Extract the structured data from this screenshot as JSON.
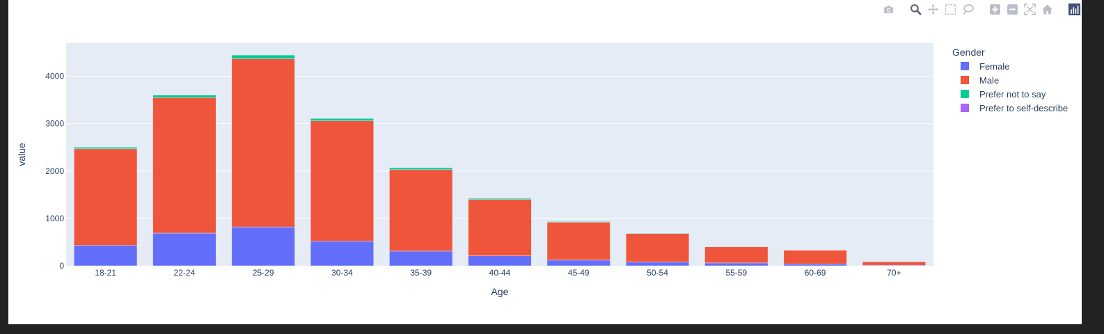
{
  "chart_data": {
    "type": "bar",
    "barmode": "stack",
    "title": "",
    "xlabel": "Age",
    "ylabel": "value",
    "ylim": [
      0,
      4700
    ],
    "yticks": [
      0,
      1000,
      2000,
      3000,
      4000
    ],
    "grid": true,
    "categories": [
      "18-21",
      "22-24",
      "25-29",
      "30-34",
      "35-39",
      "40-44",
      "45-49",
      "50-54",
      "55-59",
      "60-69",
      "70+"
    ],
    "legend_title": "Gender",
    "legend_position": "right",
    "series": [
      {
        "name": "Female",
        "color": "#636efa",
        "values": [
          430,
          690,
          820,
          520,
          310,
          210,
          120,
          80,
          60,
          40,
          12
        ]
      },
      {
        "name": "Male",
        "color": "#ef553b",
        "values": [
          2040,
          2860,
          3550,
          2540,
          1720,
          1190,
          800,
          600,
          340,
          290,
          75
        ]
      },
      {
        "name": "Prefer not to say",
        "color": "#00cc96",
        "values": [
          35,
          55,
          80,
          50,
          40,
          25,
          15,
          12,
          8,
          6,
          5
        ]
      },
      {
        "name": "Prefer to self-describe",
        "color": "#ab63fa",
        "values": [
          5,
          6,
          8,
          5,
          4,
          3,
          2,
          2,
          1,
          1,
          1
        ]
      }
    ]
  },
  "modebar": {
    "icons": [
      "camera-icon",
      "zoom-icon",
      "pan-icon",
      "box-select-icon",
      "lasso-icon",
      "zoom-in-icon",
      "zoom-out-icon",
      "autoscale-icon",
      "reset-axes-icon",
      "plotly-logo-icon"
    ]
  }
}
